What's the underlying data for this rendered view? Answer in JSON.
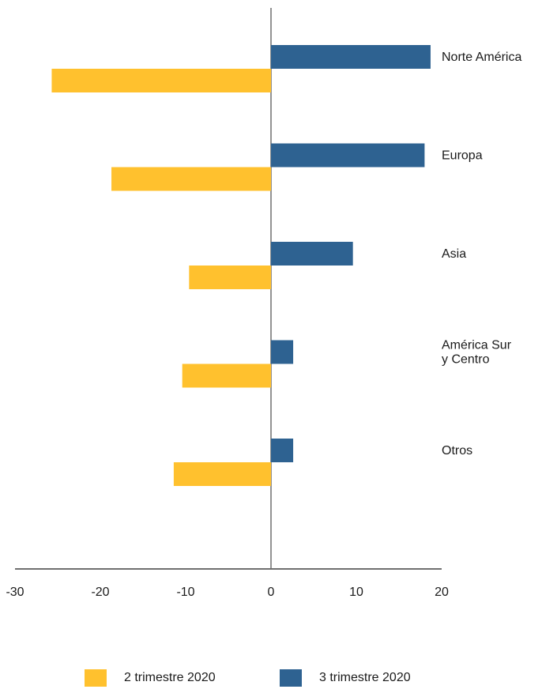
{
  "chart_data": {
    "type": "bar",
    "orientation": "horizontal",
    "categories": [
      "Norte América",
      "Europa",
      "Asia",
      "América Sur\ny Centro",
      "Otros"
    ],
    "series": [
      {
        "name": "3 trimestre 2020",
        "color": "#2e6291",
        "values": [
          18.7,
          18.0,
          9.6,
          2.6,
          2.6
        ]
      },
      {
        "name": "2 trimestre 2020",
        "color": "#ffc12e",
        "values": [
          -25.7,
          -18.7,
          -9.6,
          -10.4,
          -11.4
        ]
      }
    ],
    "xlim": [
      -30,
      20
    ],
    "xticks": [
      "-30",
      "-20",
      "-10",
      "0",
      "10",
      "20"
    ],
    "grid": false,
    "legend_position": "bottom"
  },
  "legend": {
    "items": [
      {
        "label": "2 trimestre 2020",
        "color": "#ffc12e"
      },
      {
        "label": "3 trimestre 2020",
        "color": "#2e6291"
      }
    ]
  }
}
